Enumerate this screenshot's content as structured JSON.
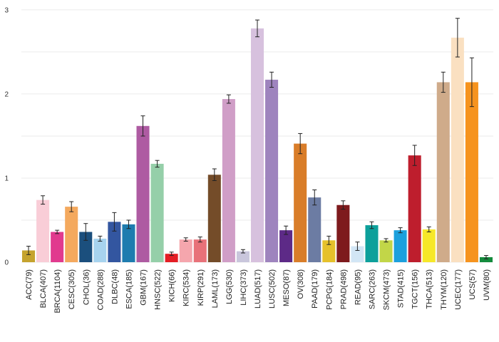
{
  "chart_data": {
    "type": "bar",
    "title": "",
    "xlabel": "",
    "ylabel": "",
    "ylim": [
      0,
      3.05
    ],
    "y_ticks": [
      0,
      1,
      2,
      3
    ],
    "y_tick_labels": [
      "0",
      "1",
      "2",
      "3"
    ],
    "grid": true,
    "legend": "none",
    "error_bars": true,
    "categories": [
      "ACC(79)",
      "BLCA(407)",
      "BRCA(1104)",
      "CESC(305)",
      "CHOL(36)",
      "COAD(288)",
      "DLBC(48)",
      "ESCA(185)",
      "GBM(167)",
      "HNSC(522)",
      "KICH(66)",
      "KIRC(534)",
      "KIRP(291)",
      "LAML(173)",
      "LGG(530)",
      "LIHC(373)",
      "LUAD(517)",
      "LUSC(502)",
      "MESO(87)",
      "OV(308)",
      "PAAD(179)",
      "PCPG(184)",
      "PRAD(498)",
      "READ(95)",
      "SARC(263)",
      "SKCM(473)",
      "STAD(415)",
      "TGCT(156)",
      "THCA(513)",
      "THYM(120)",
      "UCEC(177)",
      "UCS(57)",
      "UVM(80)"
    ],
    "values": [
      0.14,
      0.74,
      0.36,
      0.66,
      0.36,
      0.28,
      0.48,
      0.45,
      1.62,
      1.17,
      0.1,
      0.27,
      0.27,
      1.04,
      1.94,
      0.13,
      2.78,
      2.17,
      0.38,
      1.41,
      0.77,
      0.26,
      0.68,
      0.19,
      0.44,
      0.26,
      0.38,
      1.27,
      0.39,
      2.14,
      2.67,
      2.14,
      0.06
    ],
    "errors": [
      0.05,
      0.05,
      0.02,
      0.06,
      0.1,
      0.03,
      0.11,
      0.05,
      0.12,
      0.04,
      0.02,
      0.02,
      0.03,
      0.07,
      0.05,
      0.02,
      0.1,
      0.09,
      0.05,
      0.12,
      0.09,
      0.05,
      0.05,
      0.05,
      0.04,
      0.02,
      0.03,
      0.12,
      0.03,
      0.12,
      0.23,
      0.29,
      0.02
    ],
    "colors": [
      "#C5A32E",
      "#F9CDD7",
      "#E13A8E",
      "#F4A95E",
      "#1B4F7D",
      "#A7D3EE",
      "#3356A0",
      "#1E7CAF",
      "#AE5BA2",
      "#95CFA9",
      "#E41D24",
      "#F5A6AD",
      "#E87179",
      "#744C29",
      "#D09EC7",
      "#C9C6DC",
      "#D7C1DE",
      "#9E84BE",
      "#5D2A87",
      "#D97D29",
      "#6C7CA3",
      "#E6C12B",
      "#7E1A1D",
      "#D2E6F5",
      "#0DA09B",
      "#C2D648",
      "#1CA0DD",
      "#BE1E2D",
      "#F6E829",
      "#CFAB8A",
      "#FAE0C1",
      "#F6931E",
      "#148B3D"
    ]
  }
}
